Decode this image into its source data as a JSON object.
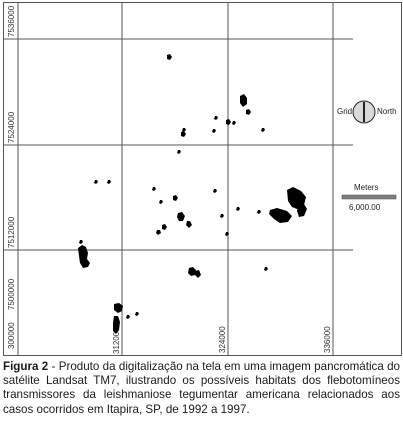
{
  "map": {
    "vertical_grid_labels": [
      "300000",
      "312000",
      "324000",
      "336000"
    ],
    "horizontal_grid_labels": [
      "7536000",
      "7524000",
      "7512000",
      "7500000"
    ],
    "north_arrow": {
      "grid_label": "Grid",
      "north_label": "North",
      "icon": "north-arrow-icon"
    },
    "scale_bar": {
      "title": "Meters",
      "value": "6,000.00",
      "color": "#808080"
    },
    "habitat_color": "#000000",
    "grid_color": "#555555"
  },
  "caption": {
    "label": "Figura 2",
    "text": " - Produto da digitalização na tela em uma imagem pancromática do satélite Landsat TM7, ilustrando os possíveis habitats dos flebotomíneos transmissores da leishmaniose tegumentar americana relacionados aos casos ocorridos em Itapira, SP, de 1992 a 1997."
  }
}
